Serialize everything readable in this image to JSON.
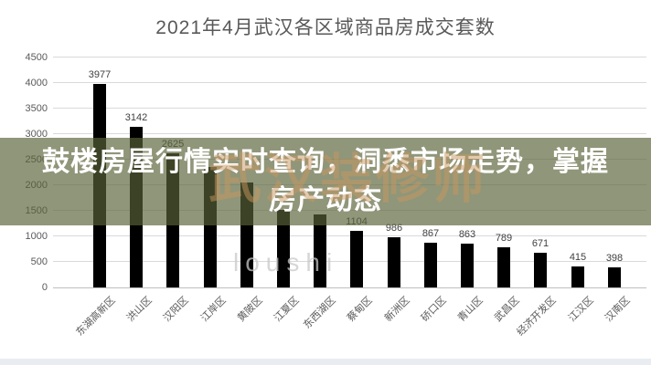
{
  "title": "2021年4月武汉各区域商品房成交套数",
  "banner": {
    "line1": "鼓楼房屋行情实时查询，洞悉市场走势，掌握",
    "line2": "房产动态",
    "bg_rgba": "rgba(90,99,55,0.67)",
    "text_color": "#ffffff"
  },
  "watermarks": {
    "seal_text": "武汉装修师",
    "seal_color": "rgba(200,150,95,0.5)",
    "latin_text": "loushi",
    "latin_color": "rgba(200,200,200,0.75)"
  },
  "bottom_strip_color": "#e9edf2",
  "chart_data": {
    "type": "bar",
    "title": "2021年4月武汉各区域商品房成交套数",
    "categories": [
      "东湖高新区",
      "洪山区",
      "汉阳区",
      "江岸区",
      "黄陂区",
      "江夏区",
      "东西湖区",
      "蔡甸区",
      "新洲区",
      "硚口区",
      "青山区",
      "武昌区",
      "经济开发区",
      "江汉区",
      "汉南区"
    ],
    "values": [
      3977,
      3142,
      2625,
      2350,
      2050,
      1520,
      1430,
      1104,
      986,
      867,
      863,
      789,
      671,
      415,
      398
    ],
    "data_labels": [
      "3977",
      "3142",
      "2625",
      "",
      "",
      "",
      "",
      "1104",
      "986",
      "867",
      "863",
      "789",
      "671",
      "415",
      "398"
    ],
    "data_labels_note": "labels for 江岸区/黄陂区/江夏区/东西湖区 are hidden behind the banner overlay; their values are estimated from bar heights",
    "yticks": [
      0,
      500,
      1000,
      1500,
      2000,
      2500,
      3000,
      3500,
      4000,
      4500
    ],
    "ylim": [
      0,
      4500
    ],
    "grid": true,
    "legend": false,
    "bar_color": "#000000",
    "grid_color": "#d9d9d9",
    "axis_text_color": "#595959",
    "data_label_color": "#404040",
    "xlabel": "",
    "ylabel": ""
  }
}
